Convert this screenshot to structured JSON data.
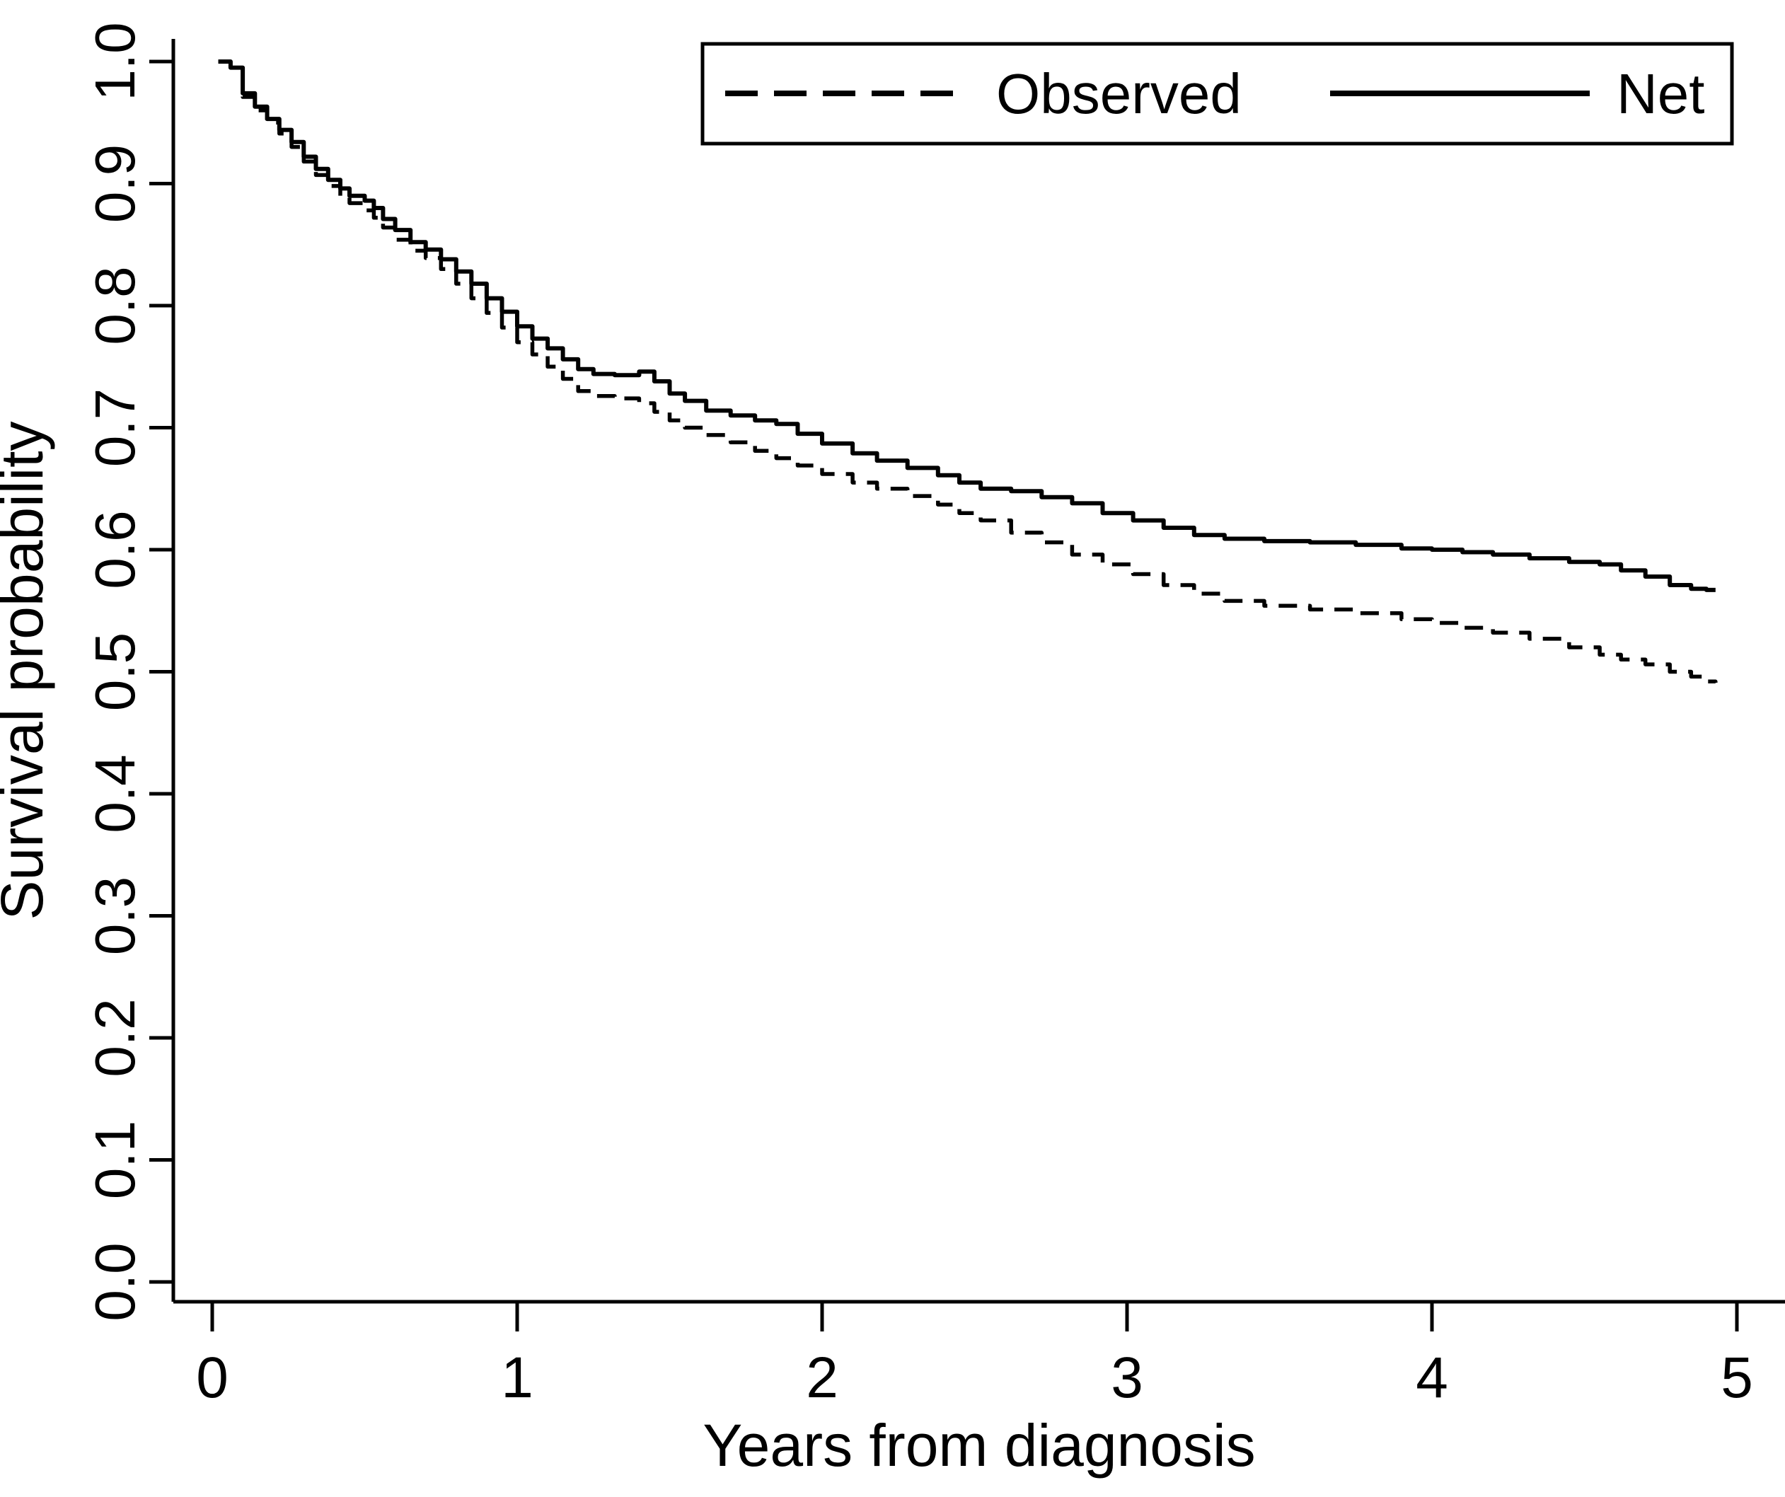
{
  "figure": {
    "background_color": "#ffffff",
    "line_color": "#000000"
  },
  "legend": {
    "observed_label": "Observed",
    "net_label": "Net"
  },
  "chart_data": {
    "type": "line",
    "title": "",
    "xlabel": "Years from diagnosis",
    "ylabel": "Survival probability",
    "xlim": [
      0,
      5.15
    ],
    "ylim": [
      0.0,
      1.0
    ],
    "x_ticks": [
      "0",
      "1",
      "2",
      "3",
      "4",
      "5"
    ],
    "y_ticks": [
      "0.0",
      "0.1",
      "0.2",
      "0.3",
      "0.4",
      "0.5",
      "0.6",
      "0.7",
      "0.8",
      "0.9",
      "1.0"
    ],
    "grid": false,
    "legend_position": "top-right-inside",
    "line_color": "#000000",
    "step_mode": "step-after",
    "x": [
      0.02,
      0.06,
      0.1,
      0.14,
      0.18,
      0.22,
      0.26,
      0.3,
      0.34,
      0.38,
      0.42,
      0.45,
      0.5,
      0.53,
      0.56,
      0.6,
      0.65,
      0.7,
      0.75,
      0.8,
      0.85,
      0.9,
      0.95,
      1.0,
      1.05,
      1.1,
      1.15,
      1.2,
      1.25,
      1.32,
      1.4,
      1.45,
      1.5,
      1.55,
      1.62,
      1.7,
      1.78,
      1.85,
      1.92,
      2.0,
      2.1,
      2.18,
      2.28,
      2.38,
      2.45,
      2.52,
      2.62,
      2.72,
      2.82,
      2.92,
      3.02,
      3.12,
      3.22,
      3.32,
      3.45,
      3.6,
      3.75,
      3.9,
      4.0,
      4.1,
      4.2,
      4.32,
      4.45,
      4.55,
      4.62,
      4.7,
      4.78,
      4.85,
      4.9,
      4.93
    ],
    "series": [
      {
        "name": "Observed",
        "style": "dashed",
        "values": [
          1.0,
          0.994,
          0.971,
          0.96,
          0.95,
          0.941,
          0.93,
          0.918,
          0.907,
          0.898,
          0.89,
          0.884,
          0.878,
          0.872,
          0.864,
          0.854,
          0.845,
          0.839,
          0.83,
          0.818,
          0.806,
          0.794,
          0.782,
          0.77,
          0.76,
          0.75,
          0.74,
          0.73,
          0.726,
          0.724,
          0.72,
          0.713,
          0.706,
          0.7,
          0.694,
          0.688,
          0.681,
          0.675,
          0.669,
          0.662,
          0.655,
          0.65,
          0.644,
          0.637,
          0.63,
          0.624,
          0.614,
          0.606,
          0.596,
          0.588,
          0.58,
          0.571,
          0.564,
          0.558,
          0.554,
          0.551,
          0.548,
          0.543,
          0.54,
          0.536,
          0.532,
          0.527,
          0.52,
          0.514,
          0.51,
          0.506,
          0.5,
          0.496,
          0.492,
          0.491
        ]
      },
      {
        "name": "Net",
        "style": "solid",
        "values": [
          1.0,
          0.995,
          0.974,
          0.963,
          0.953,
          0.944,
          0.934,
          0.922,
          0.912,
          0.903,
          0.896,
          0.89,
          0.886,
          0.88,
          0.871,
          0.862,
          0.852,
          0.846,
          0.838,
          0.828,
          0.818,
          0.806,
          0.795,
          0.783,
          0.773,
          0.765,
          0.756,
          0.748,
          0.744,
          0.743,
          0.746,
          0.738,
          0.728,
          0.722,
          0.714,
          0.71,
          0.706,
          0.703,
          0.695,
          0.687,
          0.679,
          0.673,
          0.667,
          0.661,
          0.655,
          0.65,
          0.648,
          0.643,
          0.638,
          0.63,
          0.624,
          0.618,
          0.612,
          0.609,
          0.607,
          0.606,
          0.604,
          0.601,
          0.6,
          0.598,
          0.596,
          0.593,
          0.59,
          0.588,
          0.583,
          0.578,
          0.571,
          0.568,
          0.567,
          0.567
        ]
      }
    ]
  }
}
